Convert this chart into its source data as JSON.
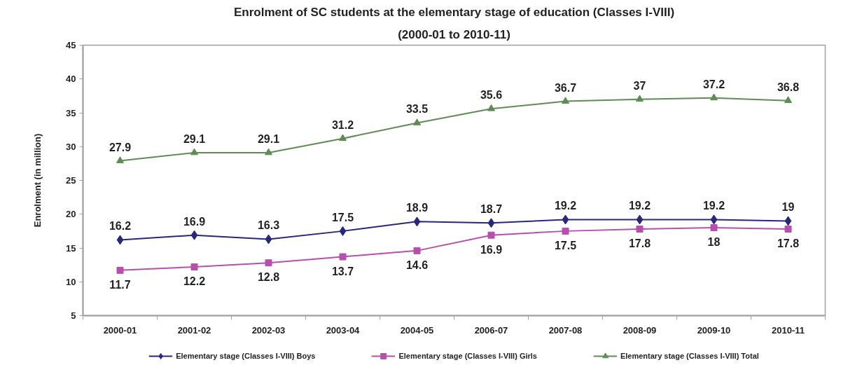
{
  "chart_data": {
    "type": "line",
    "title": "Enrolment of SC students at the elementary stage of education (Classes I-VIII)",
    "subtitle": "(2000-01 to 2010-11)",
    "ylabel": "Enrolment (in million)",
    "categories": [
      "2000-01",
      "2001-02",
      "2002-03",
      "2003-04",
      "2004-05",
      "2006-07",
      "2007-08",
      "2008-09",
      "2009-10",
      "2010-11"
    ],
    "series": [
      {
        "name": "Elementary stage (Classes I-VIII) Boys",
        "color": "#28287a",
        "marker": "diamond",
        "values": [
          16.2,
          16.9,
          16.3,
          17.5,
          18.9,
          18.7,
          19.2,
          19.2,
          19.2,
          19
        ]
      },
      {
        "name": "Elementary stage (Classes I-VIII) Girls",
        "color": "#b84fae",
        "marker": "square",
        "values": [
          11.7,
          12.2,
          12.8,
          13.7,
          14.6,
          16.9,
          17.5,
          17.8,
          18,
          17.8
        ]
      },
      {
        "name": "Elementary stage (Classes I-VIII) Total",
        "color": "#5e8c55",
        "marker": "triangle",
        "values": [
          27.9,
          29.1,
          29.1,
          31.2,
          33.5,
          35.6,
          36.7,
          37,
          37.2,
          36.8
        ]
      }
    ],
    "ylim": [
      5,
      45
    ],
    "yticks": [
      5,
      10,
      15,
      20,
      25,
      30,
      35,
      40,
      45
    ],
    "data_labels": true,
    "legend": "bottom",
    "line_style": "solid"
  }
}
